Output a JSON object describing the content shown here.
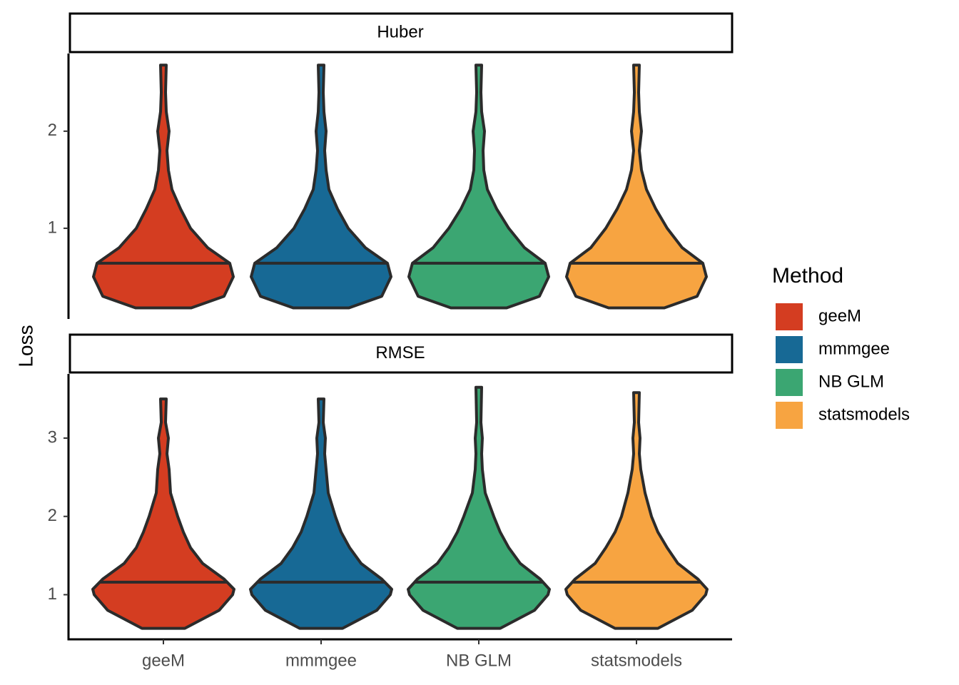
{
  "chart_data": {
    "type": "violin",
    "ylabel": "Loss",
    "legend_title": "Method",
    "legend_position": "right",
    "categories": [
      "geeM",
      "mmmgee",
      "NB GLM",
      "statsmodels"
    ],
    "colors": [
      "#d43d21",
      "#176995",
      "#3ba672",
      "#f7a441"
    ],
    "facets": [
      {
        "title": "Huber",
        "ylim": [
          0.066,
          2.8
        ],
        "yticks": [
          1,
          2
        ],
        "violins": [
          {
            "median": 0.64,
            "y": [
              0.18,
              0.3,
              0.5,
              0.64,
              0.8,
              1.0,
              1.2,
              1.4,
              1.6,
              1.8,
              2.0,
              2.2,
              2.4,
              2.68
            ],
            "width": [
              0.39,
              0.85,
              0.98,
              0.93,
              0.62,
              0.38,
              0.24,
              0.12,
              0.07,
              0.05,
              0.08,
              0.04,
              0.03,
              0.04
            ]
          },
          {
            "median": 0.64,
            "y": [
              0.18,
              0.3,
              0.5,
              0.64,
              0.8,
              1.0,
              1.2,
              1.4,
              1.6,
              1.8,
              2.0,
              2.2,
              2.4,
              2.68
            ],
            "width": [
              0.39,
              0.85,
              0.98,
              0.93,
              0.62,
              0.38,
              0.23,
              0.11,
              0.07,
              0.05,
              0.07,
              0.04,
              0.03,
              0.04
            ]
          },
          {
            "median": 0.64,
            "y": [
              0.18,
              0.3,
              0.5,
              0.64,
              0.8,
              1.0,
              1.2,
              1.4,
              1.6,
              1.8,
              2.0,
              2.2,
              2.4,
              2.68
            ],
            "width": [
              0.39,
              0.85,
              0.98,
              0.93,
              0.64,
              0.42,
              0.25,
              0.12,
              0.07,
              0.06,
              0.08,
              0.04,
              0.03,
              0.04
            ]
          },
          {
            "median": 0.64,
            "y": [
              0.18,
              0.3,
              0.5,
              0.64,
              0.8,
              1.0,
              1.2,
              1.4,
              1.6,
              1.8,
              2.0,
              2.2,
              2.4,
              2.68
            ],
            "width": [
              0.39,
              0.85,
              0.98,
              0.93,
              0.64,
              0.43,
              0.27,
              0.14,
              0.07,
              0.04,
              0.07,
              0.04,
              0.03,
              0.04
            ]
          }
        ]
      },
      {
        "title": "RMSE",
        "ylim": [
          0.43,
          3.82
        ],
        "yticks": [
          1,
          2,
          3
        ],
        "violins": [
          {
            "median": 1.16,
            "y": [
              0.57,
              0.8,
              1.0,
              1.07,
              1.2,
              1.4,
              1.6,
              1.8,
              2.0,
              2.3,
              2.6,
              2.8,
              3.0,
              3.2,
              3.5
            ],
            "width": [
              0.3,
              0.78,
              0.97,
              0.99,
              0.85,
              0.55,
              0.38,
              0.28,
              0.2,
              0.1,
              0.08,
              0.05,
              0.07,
              0.03,
              0.04
            ]
          },
          {
            "median": 1.16,
            "y": [
              0.57,
              0.8,
              1.0,
              1.07,
              1.2,
              1.4,
              1.6,
              1.8,
              2.0,
              2.3,
              2.6,
              2.8,
              3.0,
              3.2,
              3.5
            ],
            "width": [
              0.3,
              0.78,
              0.97,
              0.99,
              0.85,
              0.56,
              0.4,
              0.28,
              0.2,
              0.1,
              0.07,
              0.05,
              0.06,
              0.03,
              0.04
            ]
          },
          {
            "median": 1.16,
            "y": [
              0.57,
              0.8,
              1.0,
              1.07,
              1.2,
              1.4,
              1.6,
              1.8,
              2.0,
              2.3,
              2.6,
              2.8,
              3.0,
              3.2,
              3.65
            ],
            "width": [
              0.3,
              0.78,
              0.97,
              0.99,
              0.86,
              0.58,
              0.42,
              0.3,
              0.21,
              0.09,
              0.05,
              0.04,
              0.05,
              0.03,
              0.04
            ]
          },
          {
            "median": 1.16,
            "y": [
              0.57,
              0.8,
              1.0,
              1.07,
              1.2,
              1.4,
              1.6,
              1.8,
              2.0,
              2.3,
              2.6,
              2.8,
              3.0,
              3.2,
              3.58
            ],
            "width": [
              0.3,
              0.78,
              0.97,
              0.99,
              0.86,
              0.58,
              0.43,
              0.3,
              0.21,
              0.12,
              0.06,
              0.04,
              0.05,
              0.03,
              0.04
            ]
          }
        ]
      }
    ]
  }
}
